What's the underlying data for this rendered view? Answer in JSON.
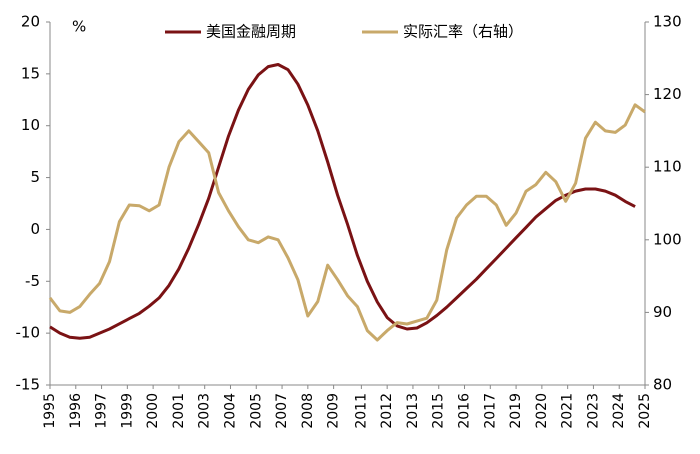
{
  "chart_data": {
    "type": "line",
    "unit_label": "%",
    "x": [
      1995,
      1995.5,
      1996,
      1996.5,
      1997,
      1997.5,
      1998,
      1998.5,
      1999,
      1999.5,
      2000,
      2000.5,
      2001,
      2001.5,
      2002,
      2002.5,
      2003,
      2003.5,
      2004,
      2004.5,
      2005,
      2005.5,
      2006,
      2006.5,
      2007,
      2007.5,
      2008,
      2008.5,
      2009,
      2009.5,
      2010,
      2010.5,
      2011,
      2011.5,
      2012,
      2012.5,
      2013,
      2013.5,
      2014,
      2014.5,
      2015,
      2015.5,
      2016,
      2016.5,
      2017,
      2017.5,
      2018,
      2018.5,
      2019,
      2019.5,
      2020,
      2020.5,
      2021,
      2021.5,
      2022,
      2022.5,
      2023,
      2023.5,
      2024,
      2024.5,
      2025
    ],
    "series": [
      {
        "name": "美国金融周期",
        "color": "#7a1214",
        "values": [
          -9.4,
          -10.0,
          -10.4,
          -10.5,
          -10.4,
          -10.0,
          -9.6,
          -9.1,
          -8.6,
          -8.1,
          -7.4,
          -6.6,
          -5.4,
          -3.8,
          -1.8,
          0.5,
          3.0,
          6.0,
          9.0,
          11.5,
          13.5,
          14.9,
          15.7,
          15.9,
          15.4,
          14.0,
          12.0,
          9.5,
          6.5,
          3.3,
          0.5,
          -2.5,
          -5.0,
          -7.0,
          -8.5,
          -9.3,
          -9.6,
          -9.5,
          -9.0,
          -8.3,
          -7.5,
          -6.6,
          -5.7,
          -4.8,
          -3.8,
          -2.8,
          -1.8,
          -0.8,
          0.2,
          1.2,
          2.0,
          2.8,
          3.3,
          3.7,
          3.9,
          3.9,
          3.7,
          3.3,
          2.7,
          2.2,
          null
        ]
      },
      {
        "name": "实际汇率（右轴）",
        "color": "#c8a96a",
        "axis": "y2",
        "values": [
          92,
          90.2,
          90,
          90.8,
          92.5,
          94,
          97,
          102.5,
          104.8,
          104.7,
          104,
          104.8,
          110,
          113.5,
          115,
          113.5,
          112,
          106.5,
          104,
          101.8,
          100,
          99.6,
          100.4,
          100,
          97.5,
          94.5,
          89.5,
          91.5,
          96.5,
          94.5,
          92.3,
          90.8,
          87.5,
          86.2,
          87.5,
          88.6,
          88.4,
          88.8,
          89.2,
          91.7,
          98.6,
          103,
          104.8,
          106,
          106,
          104.8,
          102,
          103.7,
          106.7,
          107.6,
          109.3,
          108,
          105.3,
          107.8,
          114,
          116.2,
          115,
          114.8,
          115.8,
          118.6,
          117.6
        ]
      }
    ],
    "xlim": [
      1995,
      2025
    ],
    "xticks": [
      {
        "value": 1995,
        "label": "1995"
      },
      {
        "value": 1996.3,
        "label": "1996"
      },
      {
        "value": 1997.6,
        "label": "1997"
      },
      {
        "value": 1998.9,
        "label": "1999"
      },
      {
        "value": 2000.2,
        "label": "2000"
      },
      {
        "value": 2001.5,
        "label": "2001"
      },
      {
        "value": 2002.8,
        "label": "2003"
      },
      {
        "value": 2004.1,
        "label": "2004"
      },
      {
        "value": 2005.4,
        "label": "2005"
      },
      {
        "value": 2006.7,
        "label": "2007"
      },
      {
        "value": 2008.0,
        "label": "2008"
      },
      {
        "value": 2009.3,
        "label": "2009"
      },
      {
        "value": 2010.7,
        "label": "2011"
      },
      {
        "value": 2012.0,
        "label": "2012"
      },
      {
        "value": 2013.3,
        "label": "2013"
      },
      {
        "value": 2014.6,
        "label": "2015"
      },
      {
        "value": 2015.9,
        "label": "2016"
      },
      {
        "value": 2017.2,
        "label": "2017"
      },
      {
        "value": 2018.5,
        "label": "2019"
      },
      {
        "value": 2019.8,
        "label": "2020"
      },
      {
        "value": 2021.1,
        "label": "2021"
      },
      {
        "value": 2022.4,
        "label": "2023"
      },
      {
        "value": 2023.7,
        "label": "2024"
      },
      {
        "value": 2025,
        "label": "2025"
      }
    ],
    "ylim": [
      -15,
      20
    ],
    "yticks": [
      -15,
      -10,
      -5,
      0,
      5,
      10,
      15,
      20
    ],
    "y2lim": [
      80,
      130
    ],
    "y2ticks": [
      80,
      90,
      100,
      110,
      120,
      130
    ],
    "grid": false
  }
}
